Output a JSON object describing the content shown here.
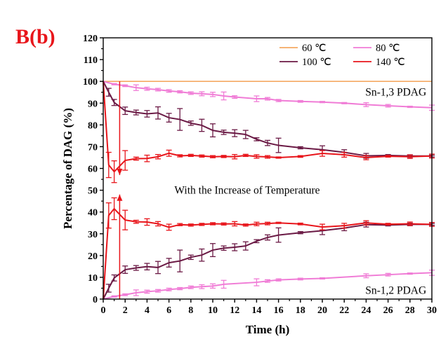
{
  "panel_label": "B(b)",
  "chart_data": {
    "type": "line",
    "xlabel": "Time (h)",
    "ylabel": "Percentage of DAG (%)",
    "xlim": [
      0,
      30
    ],
    "ylim": [
      0,
      120
    ],
    "xticks": [
      0,
      2,
      4,
      6,
      8,
      10,
      12,
      14,
      16,
      18,
      20,
      22,
      24,
      26,
      28,
      30
    ],
    "yticks": [
      0,
      10,
      20,
      30,
      40,
      50,
      60,
      70,
      80,
      90,
      100,
      110,
      120
    ],
    "grid": false,
    "legend_position": "top-right",
    "annotations": [
      {
        "text": "Sn-1,3 PDAG",
        "x": 29.5,
        "y": 95
      },
      {
        "text": "Sn-1,2 PDAG",
        "x": 29.5,
        "y": 4
      },
      {
        "text": "With the Increase of Temperature",
        "x": 6.5,
        "y": 50
      }
    ],
    "arrows": [
      {
        "x": 1.5,
        "from": 100,
        "to": 57
      },
      {
        "x": 1.5,
        "from": 0,
        "to": 48
      }
    ],
    "series": [
      {
        "name": "60 ℃",
        "color": "#f5a963",
        "marker": false,
        "x": [
          0,
          30
        ],
        "values": [
          100,
          100
        ],
        "errors": [
          0,
          0
        ]
      },
      {
        "name": "80 ℃",
        "color": "#f07cd6",
        "marker": true,
        "x": [
          0,
          1,
          2,
          3,
          4,
          5,
          6,
          7,
          8,
          9,
          10,
          11,
          12,
          14,
          15,
          16,
          18,
          20,
          22,
          24,
          26,
          28,
          30
        ],
        "values": [
          100,
          98.7,
          98,
          97.1,
          96.6,
          96.2,
          95.6,
          95.2,
          94.6,
          94.3,
          94,
          93.3,
          92.8,
          92,
          92,
          91.2,
          90.8,
          90.5,
          90,
          89.3,
          88.8,
          88.3,
          87.9
        ],
        "errors": [
          0,
          0.3,
          0.4,
          1.3,
          0.7,
          0.6,
          0.6,
          0.5,
          0.6,
          0.9,
          1,
          1.8,
          0.6,
          1.3,
          0.6,
          0.5,
          0.4,
          0.3,
          0.3,
          0.9,
          0.6,
          0.3,
          1.2
        ]
      },
      {
        "name": "80 ℃ (Sn-1,2)",
        "color": "#f07cd6",
        "marker": true,
        "x": [
          0,
          1,
          2,
          3,
          4,
          5,
          6,
          7,
          8,
          9,
          10,
          11,
          14,
          15,
          16,
          18,
          20,
          24,
          26,
          28,
          30
        ],
        "values": [
          0,
          1.2,
          2,
          2.9,
          3.4,
          3.8,
          4.4,
          4.8,
          5.4,
          5.7,
          6,
          6.8,
          7.7,
          8.3,
          8.8,
          9.2,
          9.5,
          10.7,
          11.2,
          11.7,
          12.1
        ],
        "errors": [
          0,
          0.3,
          0.4,
          1.3,
          0.7,
          0.6,
          0.6,
          0.5,
          0.6,
          0.9,
          1,
          1.8,
          1.6,
          0.6,
          0.5,
          0.4,
          0.3,
          0.9,
          0.6,
          0.3,
          1.2
        ]
      },
      {
        "name": "100 ℃",
        "color": "#6b1a45",
        "marker": true,
        "x": [
          0,
          0.5,
          1,
          2,
          3,
          4,
          5,
          6,
          7,
          8,
          9,
          10,
          11,
          12,
          13,
          14,
          15,
          16,
          18,
          20,
          22,
          24,
          26,
          28,
          30
        ],
        "values": [
          100,
          95,
          90.3,
          86.5,
          85.7,
          85.1,
          85.5,
          83.3,
          82.5,
          80.8,
          79.8,
          77.5,
          76.6,
          76.2,
          75.6,
          73.4,
          71.7,
          70.6,
          69.5,
          68.6,
          67.4,
          65.8,
          66,
          65.7,
          65.7
        ],
        "errors": [
          0,
          1.8,
          1.4,
          1.7,
          1.1,
          1.5,
          2.8,
          2,
          5,
          1,
          2.8,
          3,
          1,
          1.6,
          1.9,
          0.7,
          1.2,
          3.3,
          0.5,
          1.8,
          1.2,
          1.1,
          0.4,
          0.6,
          0.4
        ]
      },
      {
        "name": "100 ℃ (Sn-1,2)",
        "color": "#6b1a45",
        "marker": true,
        "x": [
          0,
          0.5,
          1,
          2,
          3,
          4,
          5,
          6,
          7,
          8,
          9,
          10,
          11,
          12,
          13,
          14,
          15,
          16,
          18,
          20,
          22,
          24,
          26,
          28,
          30
        ],
        "values": [
          0,
          5,
          9.7,
          13.5,
          14.3,
          14.9,
          14.5,
          16.7,
          17.5,
          19.2,
          20.2,
          22.5,
          23.4,
          23.8,
          24.4,
          26.6,
          28.3,
          29.4,
          30.5,
          31.4,
          32.6,
          34.2,
          34,
          34.3,
          34.3
        ],
        "errors": [
          0,
          1.8,
          1.4,
          1.7,
          1.1,
          1.5,
          2.8,
          2,
          5,
          1,
          2.8,
          3,
          1,
          1.6,
          1.9,
          0.7,
          1.2,
          3.3,
          0.5,
          1.8,
          1.2,
          1.1,
          0.4,
          0.6,
          0.4
        ]
      },
      {
        "name": "140 ℃",
        "color": "#e8151b",
        "marker": true,
        "x": [
          0,
          0.5,
          1,
          2,
          3,
          4,
          5,
          6,
          7,
          8,
          9,
          10,
          11,
          12,
          13,
          14,
          15,
          16,
          18,
          20,
          22,
          24,
          26,
          28,
          30
        ],
        "values": [
          100,
          61.6,
          58.5,
          63.7,
          64.5,
          64.6,
          65.4,
          67,
          65.8,
          66,
          65.7,
          65.4,
          65.5,
          65.4,
          66,
          65.5,
          65.3,
          65,
          65.5,
          66.9,
          66.3,
          65,
          65.6,
          65.4,
          65.7
        ],
        "errors": [
          0,
          5.8,
          5,
          4.5,
          0.7,
          1.5,
          1,
          1.4,
          0.5,
          0.5,
          0.5,
          0.5,
          0.5,
          1,
          0.5,
          0.8,
          0.6,
          0.3,
          0.4,
          1.3,
          1.1,
          1,
          0.4,
          0.8,
          0.9
        ]
      },
      {
        "name": "140 ℃ (Sn-1,2)",
        "color": "#e8151b",
        "marker": true,
        "x": [
          0,
          0.5,
          1,
          2,
          3,
          4,
          5,
          6,
          7,
          8,
          9,
          10,
          11,
          12,
          13,
          14,
          15,
          16,
          18,
          20,
          22,
          24,
          26,
          28,
          30
        ],
        "values": [
          0,
          38.4,
          41.5,
          36.3,
          35.5,
          35.4,
          34.6,
          33,
          34.2,
          34,
          34.3,
          34.6,
          34.5,
          34.6,
          34,
          34.5,
          34.7,
          35,
          34.5,
          33.1,
          33.7,
          35,
          34.4,
          34.6,
          34.3
        ],
        "errors": [
          0,
          5.8,
          5,
          4.5,
          0.7,
          1.5,
          1,
          1.4,
          0.5,
          0.5,
          0.5,
          0.5,
          0.5,
          1,
          0.5,
          0.8,
          0.6,
          0.3,
          0.4,
          1.3,
          1.1,
          1,
          0.4,
          0.8,
          0.9
        ]
      }
    ],
    "legend": [
      {
        "label": "60 ℃",
        "color": "#f5a963",
        "marker": false
      },
      {
        "label": "80 ℃",
        "color": "#f07cd6",
        "marker": true
      },
      {
        "label": "100 ℃",
        "color": "#6b1a45",
        "marker": true
      },
      {
        "label": "140 ℃",
        "color": "#e8151b",
        "marker": true
      }
    ]
  }
}
